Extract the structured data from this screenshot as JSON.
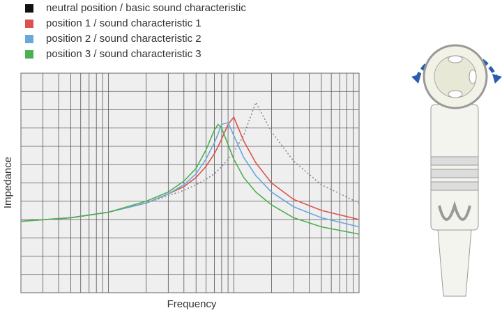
{
  "chart_data": {
    "type": "line",
    "x_label": "Frequency",
    "y_label": "Impedance",
    "x": [
      20,
      50,
      100,
      200,
      300,
      400,
      500,
      600,
      700,
      750,
      800,
      900,
      1000,
      1200,
      1500,
      2000,
      3000,
      5000,
      10000
    ],
    "xlim": [
      20,
      10000
    ],
    "ylim": [
      0,
      12
    ],
    "xscale": "log",
    "grid": true,
    "series": [
      {
        "name": "neutral position / basic sound characteristic",
        "color": "#8a8a8a",
        "legend_color": "#111111",
        "dash": "2,3",
        "values": [
          3.9,
          4.1,
          4.4,
          4.9,
          5.3,
          5.6,
          5.9,
          6.2,
          6.5,
          6.7,
          6.9,
          7.3,
          7.7,
          8.6,
          10.4,
          8.8,
          7.2,
          5.9,
          4.9
        ]
      },
      {
        "name": "position 1 / sound characteristic 1",
        "color": "#d9534f",
        "values": [
          3.9,
          4.1,
          4.4,
          4.9,
          5.4,
          5.8,
          6.3,
          6.9,
          7.6,
          8.0,
          8.4,
          9.2,
          9.6,
          8.3,
          7.1,
          6.0,
          5.1,
          4.5,
          4.0
        ]
      },
      {
        "name": "position 2 / sound characteristic 2",
        "color": "#6aa8dc",
        "values": [
          3.9,
          4.1,
          4.4,
          4.9,
          5.4,
          5.9,
          6.5,
          7.3,
          8.2,
          8.7,
          9.2,
          9.3,
          8.6,
          7.4,
          6.4,
          5.5,
          4.7,
          4.1,
          3.6
        ]
      },
      {
        "name": "position 3 / sound characteristic 3",
        "color": "#4caf50",
        "values": [
          3.9,
          4.1,
          4.4,
          5.0,
          5.5,
          6.1,
          6.8,
          7.8,
          8.9,
          9.2,
          9.0,
          8.1,
          7.3,
          6.3,
          5.5,
          4.8,
          4.1,
          3.6,
          3.2
        ]
      }
    ]
  }
}
